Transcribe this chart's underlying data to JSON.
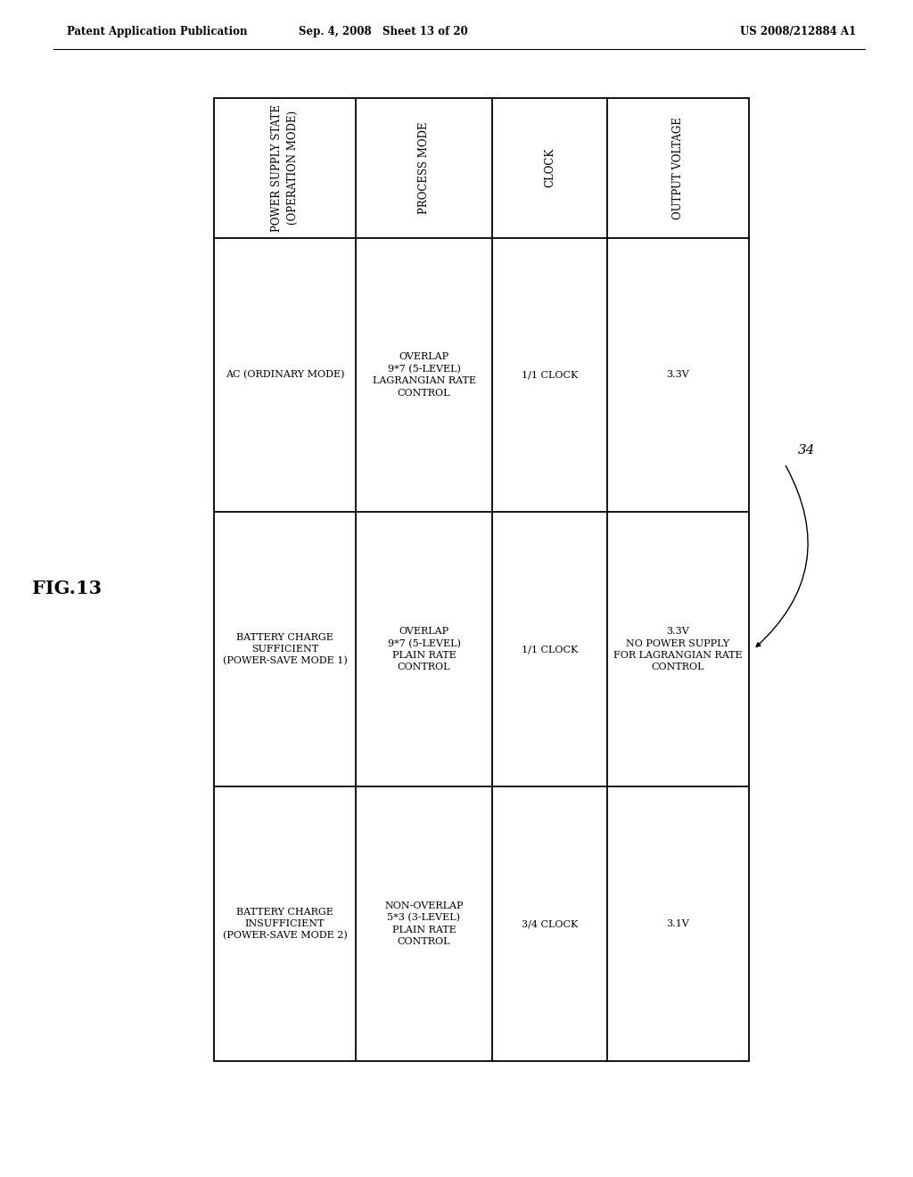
{
  "fig_label": "FIG.13",
  "patent_header_left": "Patent Application Publication",
  "patent_header_mid": "Sep. 4, 2008   Sheet 13 of 20",
  "patent_header_right": "US 2008/212884 A1",
  "figure_number": "34",
  "table": {
    "col_headers": [
      "POWER SUPPLY STATE\n(OPERATION MODE)",
      "PROCESS MODE",
      "CLOCK",
      "OUTPUT VOLTAGE"
    ],
    "rows": [
      {
        "col0": "AC (ORDINARY MODE)",
        "col1": "OVERLAP\n9*7 (5-LEVEL)\nLAGRANGIAN RATE\nCONTROL",
        "col2": "1/1 CLOCK",
        "col3": "3.3V"
      },
      {
        "col0": "BATTERY CHARGE\nSUFFICIENT\n(POWER-SAVE MODE 1)",
        "col1": "OVERLAP\n9*7 (5-LEVEL)\nPLAIN RATE\nCONTROL",
        "col2": "1/1 CLOCK",
        "col3": "3.3V\nNO POWER SUPPLY\nFOR LAGRANGIAN RATE\nCONTROL"
      },
      {
        "col0": "BATTERY CHARGE\nINSUFFICIENT\n(POWER-SAVE MODE 2)",
        "col1": "NON-OVERLAP\n5*3 (3-LEVEL)\nPLAIN RATE\nCONTROL",
        "col2": "3/4 CLOCK",
        "col3": "3.1V"
      }
    ]
  },
  "bg_color": "#ffffff",
  "text_color": "#000000",
  "line_color": "#000000",
  "header_fontsize": 8.5,
  "cell_fontsize": 8,
  "fig_label_fontsize": 15,
  "patent_fontsize": 8.5
}
